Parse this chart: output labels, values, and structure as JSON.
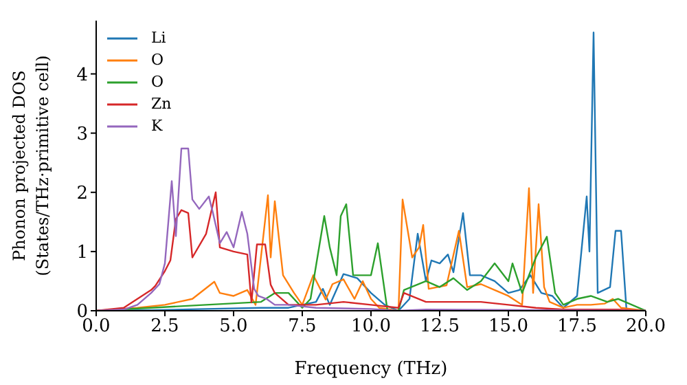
{
  "chart_data": {
    "type": "line",
    "xlabel": "Frequency (THz)",
    "ylabel": "Phonon projected DOS\n(States/THz·primitive cell)",
    "xlim": [
      0,
      20
    ],
    "xticks": [
      {
        "value": 0,
        "label": "0.0"
      },
      {
        "value": 2.5,
        "label": "2.5"
      },
      {
        "value": 5,
        "label": "5.0"
      },
      {
        "value": 7.5,
        "label": "7.5"
      },
      {
        "value": 10,
        "label": "10.0"
      },
      {
        "value": 12.5,
        "label": "12.5"
      },
      {
        "value": 15,
        "label": "15.0"
      },
      {
        "value": 17.5,
        "label": "17.5"
      },
      {
        "value": 20,
        "label": "20.0"
      }
    ],
    "ylim": [
      0,
      4.9
    ],
    "yticks": [
      0,
      1,
      2,
      3,
      4
    ],
    "grid": false,
    "legend": "top left",
    "marker": "none",
    "line_style": "solid",
    "series": [
      {
        "name": "Li",
        "color": "#1f77b4",
        "x": [
          0,
          2,
          4,
          6,
          7,
          7.5,
          8,
          8.25,
          8.5,
          9,
          9.5,
          10,
          10.5,
          11,
          11.4,
          11.7,
          12,
          12.2,
          12.5,
          12.8,
          13,
          13.35,
          13.6,
          14,
          14.5,
          15,
          15.4,
          15.8,
          16.2,
          16.6,
          17,
          17.5,
          17.85,
          17.95,
          18.1,
          18.25,
          18.7,
          18.9,
          19.1,
          19.3,
          20
        ],
        "values": [
          0,
          0.01,
          0.03,
          0.05,
          0.05,
          0.1,
          0.15,
          0.37,
          0.1,
          0.62,
          0.55,
          0.3,
          0.1,
          0,
          0.2,
          1.3,
          0.5,
          0.85,
          0.8,
          0.95,
          0.65,
          1.65,
          0.6,
          0.6,
          0.5,
          0.3,
          0.35,
          0.6,
          0.3,
          0.25,
          0.05,
          0.25,
          1.93,
          1,
          4.7,
          0.3,
          0.4,
          1.35,
          1.35,
          0,
          0
        ]
      },
      {
        "name": "O",
        "color": "#ff7f0e",
        "x": [
          0,
          1.5,
          2.5,
          3.5,
          4.3,
          4.5,
          5,
          5.5,
          5.8,
          6.25,
          6.35,
          6.5,
          6.8,
          7.2,
          7.5,
          7.9,
          8.35,
          8.6,
          9,
          9.4,
          9.7,
          10,
          10.3,
          11,
          11.15,
          11.5,
          11.75,
          11.9,
          12.1,
          12.75,
          13.2,
          13.5,
          14,
          14.5,
          15,
          15.5,
          15.75,
          15.9,
          16.1,
          16.3,
          16.5,
          17,
          17.5,
          18,
          18.5,
          18.8,
          19.1,
          20
        ],
        "values": [
          0,
          0.05,
          0.1,
          0.2,
          0.49,
          0.3,
          0.25,
          0.35,
          0.1,
          1.95,
          0.9,
          1.85,
          0.6,
          0.3,
          0.1,
          0.6,
          0.19,
          0.45,
          0.53,
          0.2,
          0.5,
          0.2,
          0.05,
          0,
          1.88,
          0.9,
          1.07,
          1.45,
          0.37,
          0.43,
          1.35,
          0.4,
          0.45,
          0.35,
          0.25,
          0.1,
          2.07,
          0.3,
          1.8,
          0.4,
          0.15,
          0.05,
          0.1,
          0.1,
          0.12,
          0.2,
          0.05,
          0
        ]
      },
      {
        "name": "O",
        "color": "#2ca02c",
        "x": [
          0,
          2,
          4,
          6,
          6.5,
          7,
          7.5,
          7.8,
          8.3,
          8.5,
          8.75,
          8.9,
          9.1,
          9.35,
          10,
          10.25,
          10.6,
          11,
          11.2,
          12,
          12.5,
          13,
          13.5,
          14,
          14.5,
          15,
          15.15,
          15.5,
          16,
          16.4,
          16.7,
          17,
          17.5,
          18,
          18.6,
          19,
          20
        ],
        "values": [
          0,
          0.05,
          0.1,
          0.15,
          0.3,
          0.3,
          0.05,
          0.2,
          1.6,
          1.07,
          0.6,
          1.6,
          1.8,
          0.6,
          0.6,
          1.14,
          0,
          0,
          0.35,
          0.5,
          0.4,
          0.55,
          0.35,
          0.5,
          0.8,
          0.5,
          0.8,
          0.3,
          0.9,
          1.25,
          0.3,
          0.1,
          0.2,
          0.25,
          0.15,
          0.2,
          0
        ]
      },
      {
        "name": "Zn",
        "color": "#d62728",
        "x": [
          0,
          1,
          2,
          2.15,
          2.5,
          2.7,
          2.9,
          3.1,
          3.35,
          3.5,
          4,
          4.35,
          4.5,
          5,
          5.5,
          5.65,
          5.85,
          6.15,
          6.35,
          6.5,
          7,
          8,
          9,
          10,
          11,
          11.2,
          12,
          13,
          14,
          15,
          16,
          17,
          18,
          19,
          20
        ],
        "values": [
          0,
          0.05,
          0.35,
          0.42,
          0.67,
          0.85,
          1.55,
          1.7,
          1.65,
          0.9,
          1.3,
          2,
          1.07,
          1,
          0.95,
          0.14,
          1.12,
          1.12,
          0.44,
          0.3,
          0.1,
          0.1,
          0.15,
          0.1,
          0.05,
          0.3,
          0.15,
          0.15,
          0.15,
          0.1,
          0.05,
          0.02,
          0.02,
          0.02,
          0
        ]
      },
      {
        "name": "K",
        "color": "#9467bd",
        "x": [
          0,
          1,
          1.5,
          2,
          2.3,
          2.5,
          2.75,
          2.9,
          3.1,
          3.35,
          3.5,
          3.75,
          4.1,
          4.25,
          4.5,
          4.75,
          5,
          5.3,
          5.5,
          5.75,
          5.9,
          6.2,
          6.5,
          7,
          8,
          10,
          11,
          12,
          20
        ],
        "values": [
          0,
          0.02,
          0.1,
          0.3,
          0.45,
          0.8,
          2.19,
          1.26,
          2.74,
          2.74,
          1.88,
          1.72,
          1.93,
          1.65,
          1.14,
          1.33,
          1.07,
          1.67,
          1.3,
          0.37,
          0.25,
          0.2,
          0.1,
          0.1,
          0.05,
          0.03,
          0,
          0.02,
          0
        ]
      }
    ]
  }
}
